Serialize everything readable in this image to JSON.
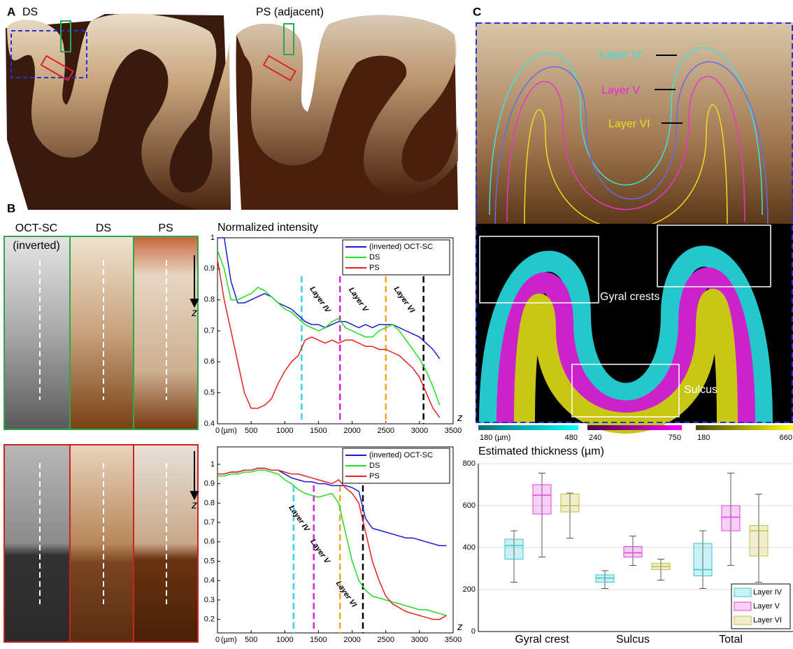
{
  "panels": {
    "a": "A",
    "b": "B",
    "c": "C"
  },
  "panel_a": {
    "labels": [
      "DS",
      "PS (adjacent)"
    ]
  },
  "panel_b": {
    "column_labels": [
      "OCT-SC",
      "DS",
      "PS"
    ],
    "inverted_note": "(inverted)",
    "depth_label": "z"
  },
  "panel_c": {
    "layer_labels": [
      "Layer IV",
      "Layer V",
      "Layer VI"
    ],
    "region_labels": [
      "Gyral crests",
      "Sulcus"
    ],
    "colorbars": [
      {
        "low": "180 (µm)",
        "high": "480"
      },
      {
        "low": "240",
        "high": "750"
      },
      {
        "low": "180",
        "high": "660"
      }
    ]
  },
  "chart_data": [
    {
      "type": "line",
      "title": "Normalized intensity",
      "x_label": "z",
      "x_unit": "(µm)",
      "x": [
        0,
        100,
        200,
        300,
        400,
        500,
        600,
        700,
        800,
        900,
        1000,
        1100,
        1200,
        1300,
        1400,
        1500,
        1600,
        1700,
        1800,
        1900,
        2000,
        2100,
        2200,
        2300,
        2400,
        2500,
        2600,
        2700,
        2800,
        2900,
        3000,
        3100,
        3200,
        3300
      ],
      "series": [
        {
          "name": "(inverted) OCT-SC",
          "color": "#1a1ad8",
          "values": [
            1.0,
            1.0,
            0.86,
            0.79,
            0.79,
            0.8,
            0.81,
            0.82,
            0.81,
            0.79,
            0.78,
            0.77,
            0.75,
            0.73,
            0.72,
            0.72,
            0.71,
            0.72,
            0.73,
            0.73,
            0.72,
            0.71,
            0.72,
            0.71,
            0.72,
            0.72,
            0.72,
            0.71,
            0.7,
            0.69,
            0.68,
            0.66,
            0.64,
            0.61
          ]
        },
        {
          "name": "DS",
          "color": "#22dd22",
          "values": [
            0.96,
            0.9,
            0.8,
            0.8,
            0.81,
            0.82,
            0.84,
            0.83,
            0.81,
            0.79,
            0.77,
            0.76,
            0.74,
            0.72,
            0.71,
            0.7,
            0.71,
            0.73,
            0.74,
            0.71,
            0.7,
            0.69,
            0.68,
            0.68,
            0.7,
            0.71,
            0.72,
            0.7,
            0.67,
            0.64,
            0.61,
            0.57,
            0.52,
            0.46
          ]
        },
        {
          "name": "PS",
          "color": "#e8201c",
          "values": [
            0.93,
            0.8,
            0.7,
            0.6,
            0.5,
            0.45,
            0.45,
            0.46,
            0.48,
            0.53,
            0.57,
            0.6,
            0.62,
            0.67,
            0.68,
            0.67,
            0.66,
            0.67,
            0.66,
            0.67,
            0.67,
            0.66,
            0.65,
            0.65,
            0.64,
            0.64,
            0.63,
            0.62,
            0.6,
            0.58,
            0.55,
            0.5,
            0.45,
            0.42
          ]
        }
      ],
      "markers": [
        {
          "x": 1250,
          "color": "#35d4e6",
          "label": "Layer IV"
        },
        {
          "x": 1820,
          "color": "#e020e0",
          "label": "Layer V"
        },
        {
          "x": 2500,
          "color": "#f5a623",
          "label": "Layer VI"
        },
        {
          "x": 3060,
          "color": "#000000"
        }
      ],
      "xlim": [
        0,
        3500
      ],
      "xticks": [
        0,
        500,
        1000,
        1500,
        2000,
        2500,
        3000,
        3500
      ],
      "ylim": [
        0.4,
        1
      ],
      "yticks": [
        0.4,
        0.5,
        0.6,
        0.7,
        0.8,
        0.9,
        1
      ]
    },
    {
      "type": "line",
      "x_label": "z",
      "x_unit": "(µm)",
      "x": [
        0,
        100,
        200,
        300,
        400,
        500,
        600,
        700,
        800,
        900,
        1000,
        1100,
        1200,
        1300,
        1400,
        1500,
        1600,
        1700,
        1800,
        1900,
        2000,
        2100,
        2200,
        2300,
        2400,
        2500,
        2600,
        2700,
        2800,
        2900,
        3000,
        3100,
        3200,
        3300,
        3400
      ],
      "series": [
        {
          "name": "(inverted) OCT-SC",
          "color": "#1a1ad8",
          "values": [
            0.95,
            0.95,
            0.96,
            0.96,
            0.97,
            0.97,
            0.98,
            0.98,
            0.97,
            0.97,
            0.95,
            0.93,
            0.92,
            0.91,
            0.91,
            0.9,
            0.9,
            0.89,
            0.89,
            0.89,
            0.88,
            0.86,
            0.72,
            0.67,
            0.66,
            0.65,
            0.64,
            0.63,
            0.62,
            0.62,
            0.61,
            0.6,
            0.59,
            0.58,
            0.58
          ]
        },
        {
          "name": "DS",
          "color": "#22dd22",
          "values": [
            0.94,
            0.94,
            0.95,
            0.95,
            0.96,
            0.96,
            0.97,
            0.97,
            0.96,
            0.95,
            0.92,
            0.9,
            0.87,
            0.85,
            0.84,
            0.83,
            0.84,
            0.85,
            0.8,
            0.65,
            0.5,
            0.4,
            0.35,
            0.32,
            0.31,
            0.3,
            0.29,
            0.28,
            0.27,
            0.26,
            0.25,
            0.25,
            0.24,
            0.23,
            0.22
          ]
        },
        {
          "name": "PS",
          "color": "#e8201c",
          "values": [
            0.95,
            0.95,
            0.96,
            0.96,
            0.97,
            0.97,
            0.98,
            0.98,
            0.97,
            0.97,
            0.96,
            0.95,
            0.95,
            0.94,
            0.93,
            0.92,
            0.91,
            0.9,
            0.92,
            0.88,
            0.85,
            0.8,
            0.65,
            0.5,
            0.4,
            0.32,
            0.28,
            0.26,
            0.24,
            0.23,
            0.22,
            0.21,
            0.2,
            0.2,
            0.22
          ]
        }
      ],
      "markers": [
        {
          "x": 1130,
          "color": "#35d4e6",
          "label": "Layer IV"
        },
        {
          "x": 1430,
          "color": "#e020e0",
          "label": "Layer V"
        },
        {
          "x": 1820,
          "color": "#f5a623",
          "label": "Layer VI"
        },
        {
          "x": 2160,
          "color": "#000000"
        }
      ],
      "xlim": [
        0,
        3500
      ],
      "xticks": [
        0,
        500,
        1000,
        1500,
        2000,
        2500,
        3000,
        3500
      ],
      "ylim": [
        0.13,
        1.09
      ],
      "yticks": [
        0.2,
        0.3,
        0.4,
        0.5,
        0.6,
        0.7,
        0.8,
        0.9,
        1
      ]
    },
    {
      "type": "box",
      "title": "Estimated thickness (µm)",
      "categories": [
        "Gyral crest",
        "Sulcus",
        "Total"
      ],
      "series": [
        {
          "name": "Layer IV",
          "color": "#35c8d0",
          "values": [
            {
              "min": 235,
              "q1": 345,
              "median": 410,
              "q3": 440,
              "max": 480
            },
            {
              "min": 205,
              "q1": 235,
              "median": 255,
              "q3": 270,
              "max": 290
            },
            {
              "min": 205,
              "q1": 265,
              "median": 295,
              "q3": 420,
              "max": 480
            }
          ]
        },
        {
          "name": "Layer V",
          "color": "#dd44dd",
          "values": [
            {
              "min": 355,
              "q1": 560,
              "median": 650,
              "q3": 700,
              "max": 755
            },
            {
              "min": 315,
              "q1": 355,
              "median": 375,
              "q3": 405,
              "max": 455
            },
            {
              "min": 315,
              "q1": 480,
              "median": 545,
              "q3": 600,
              "max": 755
            }
          ]
        },
        {
          "name": "Layer VI",
          "color": "#c0c040",
          "values": [
            {
              "min": 445,
              "q1": 570,
              "median": 600,
              "q3": 655,
              "max": 660
            },
            {
              "min": 245,
              "q1": 295,
              "median": 310,
              "q3": 325,
              "max": 345
            },
            {
              "min": 235,
              "q1": 360,
              "median": 480,
              "q3": 505,
              "max": 655
            }
          ]
        }
      ],
      "ylim": [
        0,
        800
      ],
      "yticks": [
        0,
        200,
        400,
        600,
        800
      ],
      "grid": true
    }
  ]
}
